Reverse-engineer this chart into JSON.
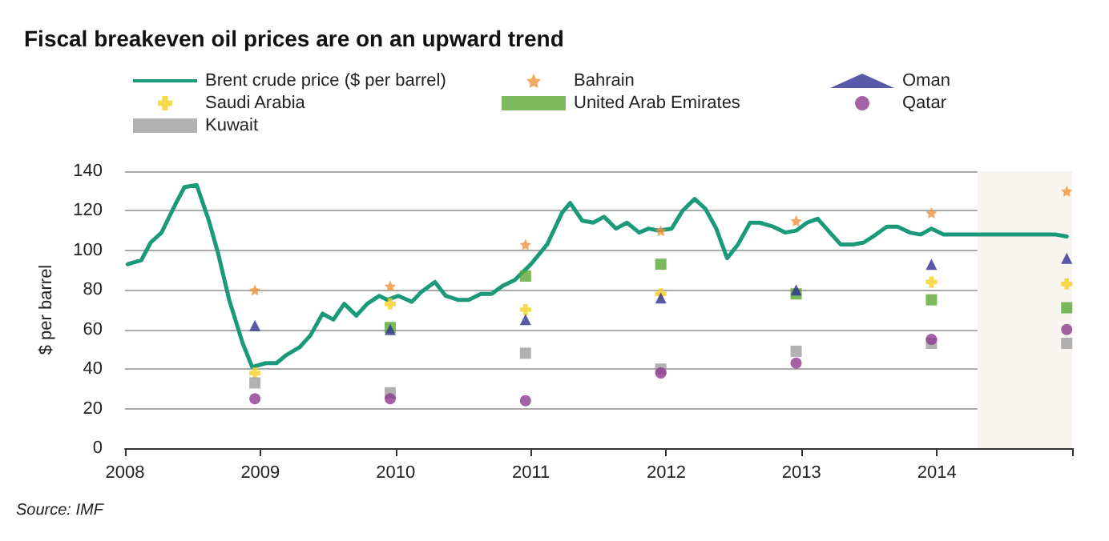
{
  "chart_data": {
    "type": "scatter",
    "title": "Fiscal breakeven oil prices are on an upward trend",
    "ylabel": "$ per barrel",
    "annotations": [
      "Source: IMF"
    ],
    "xlim": [
      2008,
      2015
    ],
    "xticks": [
      2008,
      2009,
      2010,
      2011,
      2012,
      2013,
      2014,
      {
        "value": 2015,
        "label": null
      }
    ],
    "ylim": [
      0,
      140
    ],
    "yticks": [
      0,
      20,
      40,
      60,
      80,
      100,
      120,
      140
    ],
    "grid": "y",
    "legend": "top",
    "bands": [
      {
        "axis": "x",
        "from": 2014.3,
        "to": 2015,
        "color": "#f8f5f0"
      }
    ],
    "x": [
      2008.96,
      2009.96,
      2010.96,
      2011.96,
      2012.96,
      2013.96,
      2014.96
    ],
    "series": [
      {
        "name": "Brent crude price ($ per barrel)",
        "type": "line",
        "color": "#1a9a78",
        "marker": "none",
        "x": [
          2008.02,
          2008.12,
          2008.19,
          2008.27,
          2008.37,
          2008.44,
          2008.53,
          2008.62,
          2008.69,
          2008.77,
          2008.87,
          2008.94,
          2009.04,
          2009.12,
          2009.19,
          2009.29,
          2009.37,
          2009.46,
          2009.54,
          2009.62,
          2009.71,
          2009.79,
          2009.88,
          2009.94,
          2010.02,
          2010.12,
          2010.19,
          2010.29,
          2010.37,
          2010.46,
          2010.54,
          2010.63,
          2010.71,
          2010.79,
          2010.88,
          2011.0,
          2011.12,
          2011.23,
          2011.29,
          2011.38,
          2011.46,
          2011.54,
          2011.63,
          2011.71,
          2011.8,
          2011.87,
          2011.94,
          2012.04,
          2012.12,
          2012.21,
          2012.29,
          2012.37,
          2012.45,
          2012.53,
          2012.62,
          2012.69,
          2012.79,
          2012.88,
          2012.96,
          2013.04,
          2013.12,
          2013.21,
          2013.29,
          2013.38,
          2013.46,
          2013.55,
          2013.63,
          2013.71,
          2013.8,
          2013.88,
          2013.96,
          2014.05,
          2014.88,
          2014.96
        ],
        "values": [
          93,
          95,
          104,
          109,
          123,
          132,
          133,
          115,
          98,
          75,
          53,
          41,
          43,
          43,
          47,
          51,
          57,
          68,
          65,
          73,
          67,
          73,
          77,
          75,
          77,
          74,
          79,
          84,
          77,
          75,
          75,
          78,
          78,
          82,
          85,
          93,
          103,
          119,
          124,
          115,
          114,
          117,
          111,
          114,
          109,
          111,
          110,
          111,
          120,
          126,
          121,
          111,
          96,
          103,
          114,
          114,
          112,
          109,
          110,
          114,
          116,
          109,
          103,
          103,
          104,
          108,
          112,
          112,
          109,
          108,
          111,
          108,
          108,
          107
        ]
      },
      {
        "name": "Saudi Arabia",
        "color": "#f5cf22",
        "marker": "cross",
        "values": [
          38,
          73,
          70,
          78,
          null,
          84,
          83
        ]
      },
      {
        "name": "Kuwait",
        "color": "#9d9d9d",
        "marker": "square",
        "values": [
          33,
          28,
          48,
          40,
          49,
          53,
          53
        ]
      },
      {
        "name": "Bahrain",
        "color": "#f0923a",
        "marker": "star",
        "values": [
          80,
          82,
          103,
          110,
          115,
          119,
          130
        ]
      },
      {
        "name": "United Arab Emirates",
        "color": "#5aa832",
        "marker": "square",
        "values": [
          null,
          61,
          87,
          93,
          78,
          75,
          71
        ]
      },
      {
        "name": "Oman",
        "color": "#2e3192",
        "marker": "triangle",
        "values": [
          62,
          60,
          65,
          76,
          80,
          93,
          96
        ]
      },
      {
        "name": "Qatar",
        "color": "#8e3a8f",
        "marker": "circle",
        "values": [
          25,
          25,
          24,
          38,
          43,
          55,
          60
        ]
      }
    ]
  }
}
